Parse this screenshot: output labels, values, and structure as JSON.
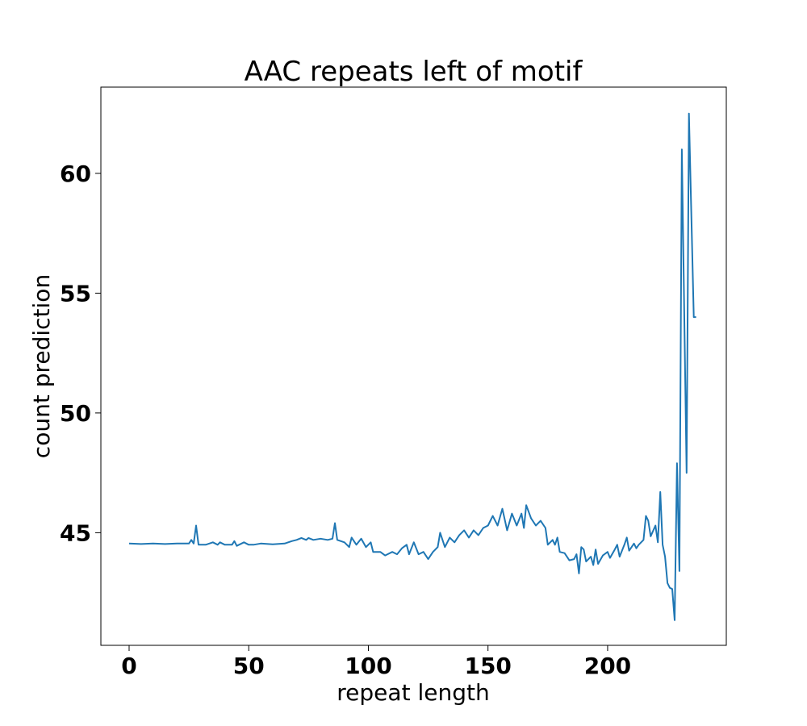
{
  "chart_data": {
    "type": "line",
    "title": "AAC repeats left of motif",
    "xlabel": "repeat length",
    "ylabel": "count prediction",
    "xlim": [
      -11.8,
      249.6
    ],
    "ylim": [
      40.3,
      63.6
    ],
    "xticks": [
      0,
      50,
      100,
      150,
      200
    ],
    "yticks": [
      45,
      50,
      55,
      60
    ],
    "grid": false,
    "series": [
      {
        "name": "count prediction",
        "color": "#1f77b4",
        "x": [
          0,
          5,
          10,
          15,
          20,
          25,
          26,
          27,
          28,
          29,
          32,
          35,
          37,
          38,
          40,
          43,
          44,
          45,
          48,
          50,
          52,
          55,
          60,
          65,
          68,
          70,
          72,
          74,
          75,
          77,
          80,
          83,
          85,
          86,
          87,
          90,
          92,
          93,
          95,
          97,
          99,
          101,
          102,
          105,
          107,
          110,
          112,
          114,
          116,
          117,
          119,
          121,
          123,
          125,
          127,
          129,
          130,
          132,
          134,
          136,
          138,
          140,
          142,
          144,
          146,
          148,
          150,
          152,
          154,
          156,
          158,
          160,
          162,
          164,
          165,
          166,
          168,
          170,
          172,
          174,
          175,
          177,
          178,
          179,
          180,
          182,
          184,
          186,
          187,
          188,
          189,
          190,
          191,
          193,
          194,
          195,
          196,
          198,
          200,
          201,
          203,
          204,
          205,
          207,
          208,
          209,
          211,
          212,
          213,
          215,
          216,
          217,
          218,
          220,
          221,
          222,
          223,
          224,
          225,
          226,
          227,
          228,
          229,
          230,
          231,
          233,
          234,
          236,
          237
        ],
        "y": [
          44.55,
          44.53,
          44.55,
          44.53,
          44.55,
          44.55,
          44.7,
          44.55,
          45.3,
          44.5,
          44.5,
          44.6,
          44.5,
          44.6,
          44.5,
          44.5,
          44.65,
          44.45,
          44.6,
          44.5,
          44.5,
          44.55,
          44.52,
          44.55,
          44.65,
          44.7,
          44.78,
          44.7,
          44.78,
          44.7,
          44.75,
          44.7,
          44.75,
          45.4,
          44.7,
          44.6,
          44.4,
          44.8,
          44.5,
          44.75,
          44.4,
          44.6,
          44.2,
          44.2,
          44.05,
          44.2,
          44.1,
          44.35,
          44.5,
          44.1,
          44.6,
          44.1,
          44.2,
          43.9,
          44.2,
          44.4,
          45.0,
          44.4,
          44.8,
          44.6,
          44.9,
          45.1,
          44.8,
          45.1,
          44.9,
          45.2,
          45.3,
          45.7,
          45.3,
          46.0,
          45.1,
          45.8,
          45.3,
          45.8,
          45.2,
          46.15,
          45.6,
          45.3,
          45.5,
          45.2,
          44.5,
          44.7,
          44.5,
          44.8,
          44.2,
          44.15,
          43.85,
          43.9,
          44.1,
          43.3,
          44.4,
          44.3,
          43.8,
          44.0,
          43.65,
          44.3,
          43.7,
          44.05,
          44.2,
          43.95,
          44.3,
          44.5,
          44.0,
          44.5,
          44.8,
          44.25,
          44.55,
          44.35,
          44.5,
          44.7,
          45.7,
          45.5,
          44.85,
          45.3,
          44.6,
          46.7,
          44.5,
          44.0,
          42.9,
          42.7,
          42.65,
          41.35,
          47.9,
          43.4,
          61.0,
          47.5,
          62.5,
          54.0,
          54.0
        ]
      }
    ]
  }
}
